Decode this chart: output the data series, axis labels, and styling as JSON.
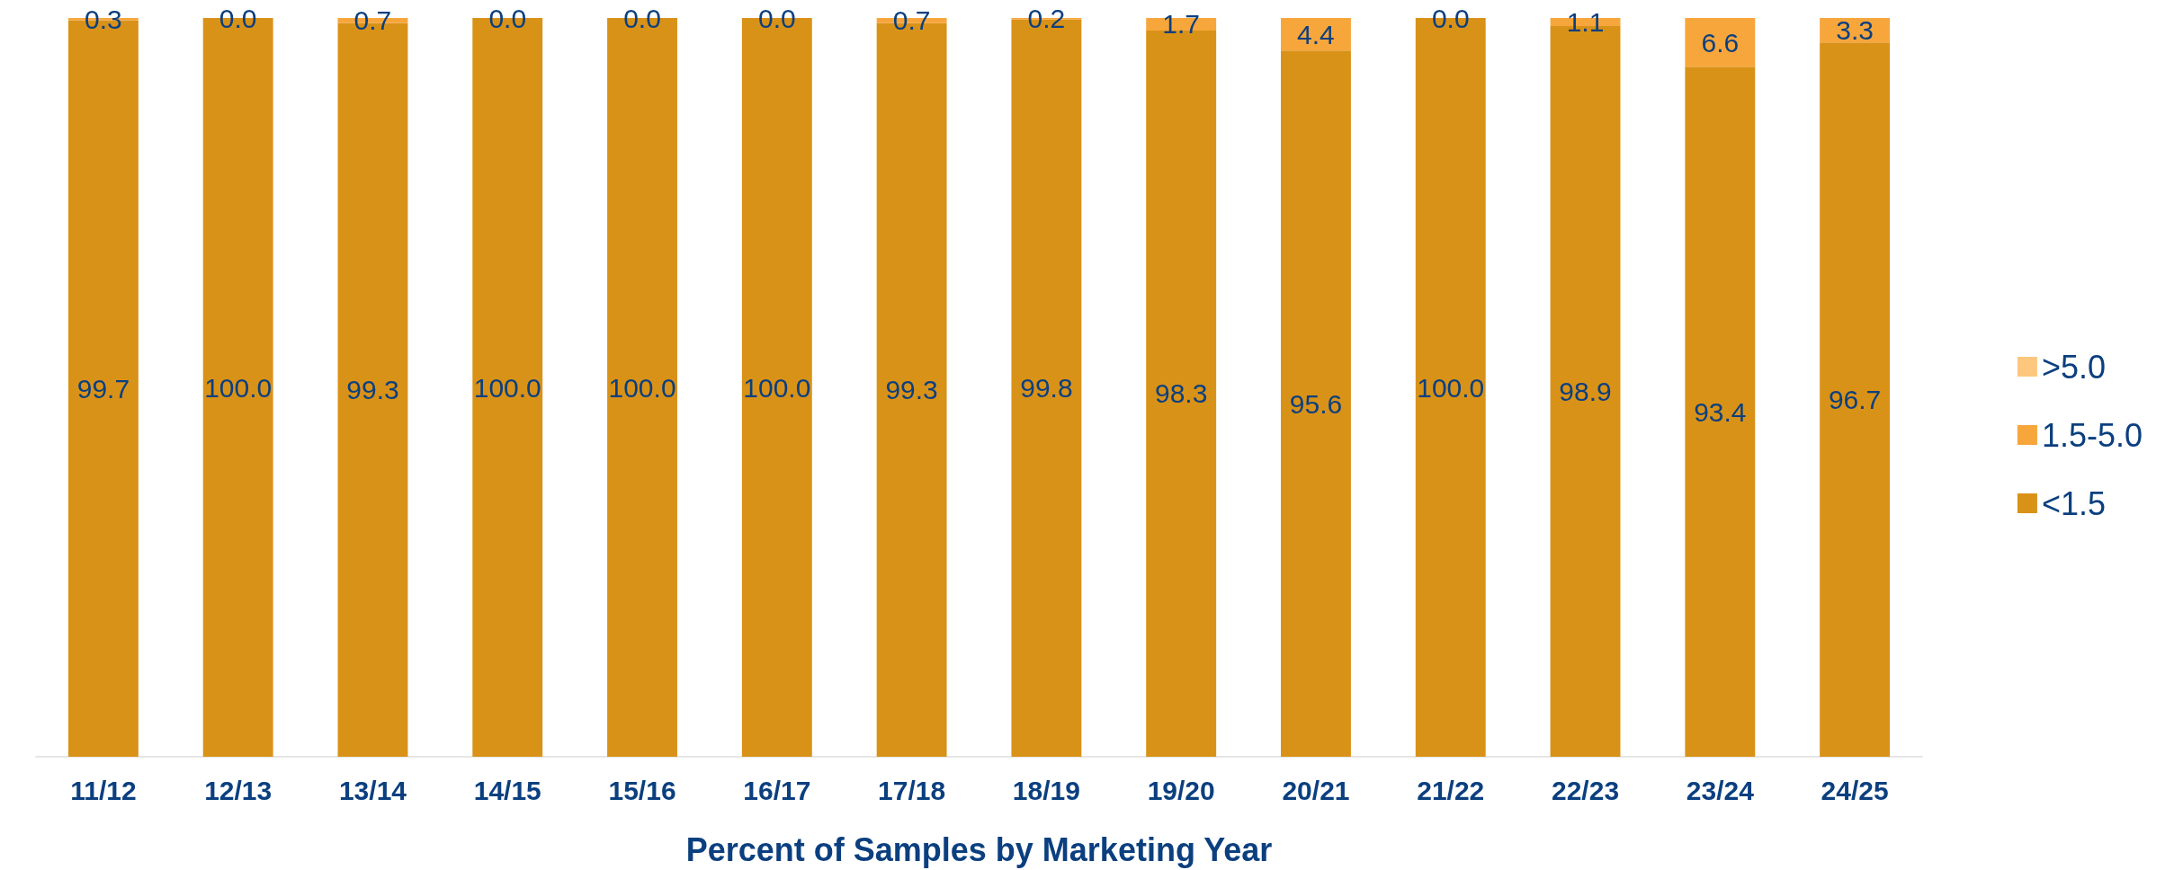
{
  "chart_data": {
    "type": "bar",
    "xlabel": "Percent of Samples by Marketing Year",
    "categories": [
      "11/12",
      "12/13",
      "13/14",
      "14/15",
      "15/16",
      "16/17",
      "17/18",
      "18/19",
      "19/20",
      "20/21",
      "21/22",
      "22/23",
      "23/24",
      "24/25"
    ],
    "stacked": true,
    "legend": "right",
    "series": [
      {
        "name": "<1.5",
        "color": "#d99218",
        "values": [
          99.7,
          100.0,
          99.3,
          100.0,
          100.0,
          100.0,
          99.3,
          99.8,
          98.3,
          95.6,
          100.0,
          98.9,
          93.4,
          96.7
        ],
        "value_labels": [
          "99.7",
          "100.0",
          "99.3",
          "100.0",
          "100.0",
          "100.0",
          "99.3",
          "99.8",
          "98.3",
          "95.6",
          "100.0",
          "98.9",
          "93.4",
          "96.7"
        ]
      },
      {
        "name": "1.5-5.0",
        "color": "#f7a63c",
        "values": [
          0.3,
          0.0,
          0.7,
          0.0,
          0.0,
          0.0,
          0.7,
          0.2,
          1.7,
          4.4,
          0.0,
          1.1,
          6.6,
          3.3
        ],
        "value_labels": [
          "0.3",
          "0.0",
          "0.7",
          "0.0",
          "0.0",
          "0.0",
          "0.7",
          "0.2",
          "1.7",
          "4.4",
          "0.0",
          "1.1",
          "6.6",
          "3.3"
        ]
      },
      {
        "name": ">5.0",
        "color": "#fdc77e",
        "values": [
          0,
          0,
          0,
          0,
          0,
          0,
          0,
          0,
          0,
          0,
          0,
          0,
          0,
          0
        ]
      }
    ]
  }
}
